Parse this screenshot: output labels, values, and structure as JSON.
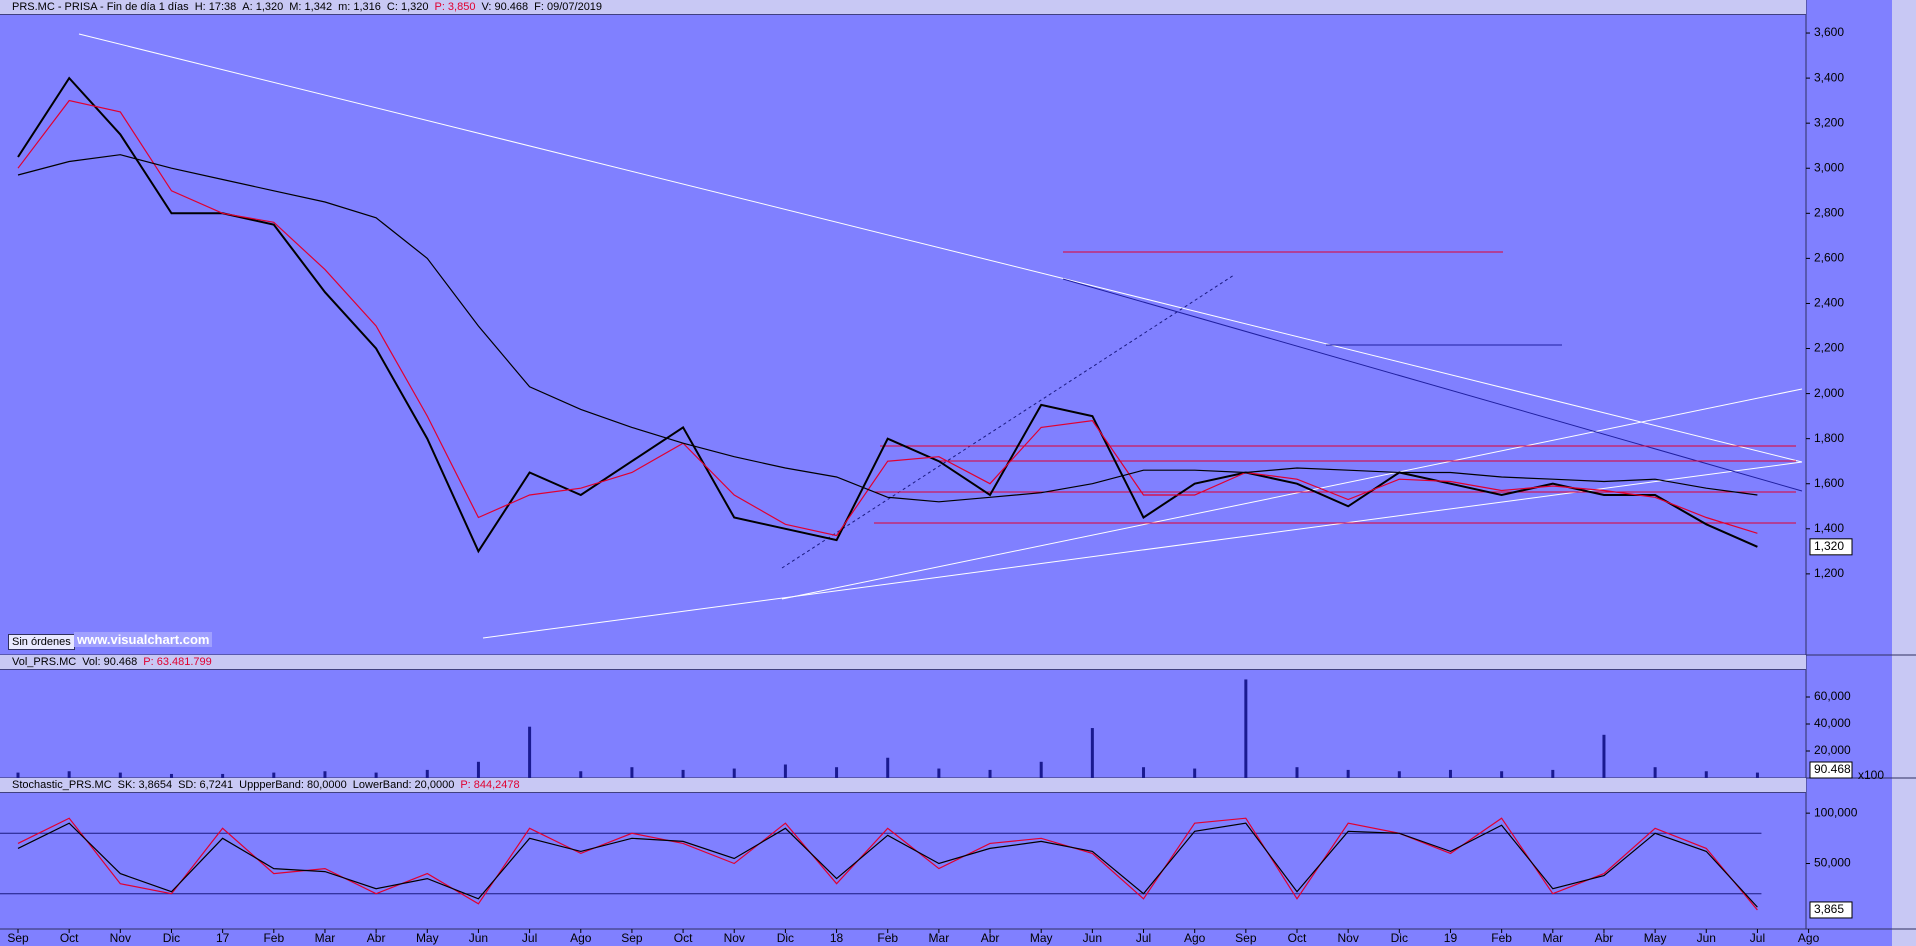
{
  "chart_data": [
    {
      "type": "line",
      "header": [
        {
          "text": "PRS.MC - PRISA - Fin de día 1 días",
          "color": "#000000"
        },
        {
          "text": "H: 17:38",
          "color": "#000000"
        },
        {
          "text": "A: 1,320",
          "color": "#000000"
        },
        {
          "text": "M: 1,342",
          "color": "#000000"
        },
        {
          "text": "m: 1,316",
          "color": "#000000"
        },
        {
          "text": "C: 1,320",
          "color": "#000000"
        },
        {
          "text": "P: 3,850",
          "color": "#e00030"
        },
        {
          "text": "V: 90.468",
          "color": "#000000"
        },
        {
          "text": "F: 09/07/2019",
          "color": "#000000"
        }
      ],
      "button": "Sin órdenes",
      "watermark": "www.visualchart.com",
      "last_label": "1,320",
      "ylim": [
        840,
        3680
      ],
      "yticks": [
        {
          "value": 1200,
          "label": "1,200"
        },
        {
          "value": 1400,
          "label": "1,400"
        },
        {
          "value": 1600,
          "label": "1,600"
        },
        {
          "value": 1800,
          "label": "1,800"
        },
        {
          "value": 2000,
          "label": "2,000"
        },
        {
          "value": 2200,
          "label": "2,200"
        },
        {
          "value": 2400,
          "label": "2,400"
        },
        {
          "value": 2600,
          "label": "2,600"
        },
        {
          "value": 2800,
          "label": "2,800"
        },
        {
          "value": 3000,
          "label": "3,000"
        },
        {
          "value": 3200,
          "label": "3,200"
        },
        {
          "value": 3400,
          "label": "3,400"
        },
        {
          "value": 3600,
          "label": "3,600"
        }
      ],
      "series": [
        {
          "color": "#000000",
          "values": [
            3050,
            3400,
            3150,
            2800,
            2800,
            2750,
            2450,
            2200,
            1800,
            1300,
            1650,
            1550,
            1700,
            1850,
            1450,
            1400,
            1350,
            1800,
            1700,
            1550,
            1950,
            1900,
            1450,
            1600,
            1650,
            1600,
            1500,
            1650,
            1600,
            1550,
            1600,
            1550,
            1550,
            1420,
            1320,
            null
          ]
        },
        {
          "color": "#e00030",
          "values": [
            3000,
            3300,
            3250,
            2900,
            2800,
            2760,
            2550,
            2300,
            1900,
            1450,
            1550,
            1580,
            1650,
            1780,
            1550,
            1420,
            1370,
            1700,
            1720,
            1600,
            1850,
            1880,
            1550,
            1550,
            1650,
            1620,
            1530,
            1620,
            1610,
            1570,
            1590,
            1570,
            1540,
            1450,
            1380,
            null
          ]
        },
        {
          "color": "#000000",
          "values": [
            2970,
            3030,
            3060,
            3000,
            2950,
            2900,
            2850,
            2780,
            2600,
            2300,
            2030,
            1930,
            1850,
            1780,
            1720,
            1670,
            1630,
            1540,
            1520,
            1540,
            1560,
            1600,
            1660,
            1660,
            1650,
            1670,
            1660,
            1650,
            1650,
            1630,
            1620,
            1610,
            1620,
            1580,
            1550,
            null
          ]
        }
      ]
    },
    {
      "type": "bar",
      "header": [
        {
          "text": "Vol_PRS.MC",
          "color": "#000000"
        },
        {
          "text": "Vol: 90.468",
          "color": "#000000"
        },
        {
          "text": "P: 63.481.799",
          "color": "#e00030"
        }
      ],
      "last_label": "90.468",
      "axis_note": "x100",
      "color": "#1a1a90",
      "ylim": [
        0,
        80000
      ],
      "yticks": [
        {
          "value": 20000,
          "label": "20,000"
        },
        {
          "value": 40000,
          "label": "40,000"
        },
        {
          "value": 60000,
          "label": "60,000"
        }
      ],
      "values": [
        4000,
        5000,
        4000,
        3000,
        3000,
        4000,
        5000,
        4000,
        6000,
        12000,
        38000,
        5000,
        8000,
        6000,
        7000,
        10000,
        8000,
        15000,
        7000,
        6000,
        12000,
        37000,
        8000,
        7000,
        73000,
        8000,
        6000,
        5000,
        6000,
        5000,
        6000,
        32000,
        8000,
        5000,
        4000,
        null
      ]
    },
    {
      "type": "line",
      "header": [
        {
          "text": "Stochastic_PRS.MC",
          "color": "#000000"
        },
        {
          "text": "SK: 3,8654",
          "color": "#000000"
        },
        {
          "text": "SD: 6,7241",
          "color": "#000000"
        },
        {
          "text": "UppperBand: 80,0000",
          "color": "#000000"
        },
        {
          "text": "LowerBand: 20,0000",
          "color": "#000000"
        },
        {
          "text": "P: 844,2478",
          "color": "#e00030"
        }
      ],
      "last_label": "3,865",
      "ylim": [
        -15,
        120
      ],
      "yticks": [
        {
          "value": 50,
          "label": "50,000"
        },
        {
          "value": 100,
          "label": "100,000"
        }
      ],
      "bands": [
        80,
        20
      ],
      "categories": [
        "Sep",
        "Oct",
        "Nov",
        "Dic",
        "17",
        "Feb",
        "Mar",
        "Abr",
        "May",
        "Jun",
        "Jul",
        "Ago",
        "Sep",
        "Oct",
        "Nov",
        "Dic",
        "18",
        "Feb",
        "Mar",
        "Abr",
        "May",
        "Jun",
        "Jul",
        "Ago",
        "Sep",
        "Oct",
        "Nov",
        "Dic",
        "19",
        "Feb",
        "Mar",
        "Abr",
        "May",
        "Jun",
        "Jul",
        "Ago"
      ],
      "series": [
        {
          "color": "#e00030",
          "values": [
            70,
            95,
            30,
            20,
            85,
            40,
            45,
            20,
            40,
            10,
            85,
            60,
            80,
            70,
            50,
            90,
            30,
            85,
            45,
            70,
            75,
            60,
            15,
            90,
            95,
            15,
            90,
            80,
            60,
            95,
            20,
            40,
            85,
            65,
            3.9,
            null
          ]
        },
        {
          "color": "#000000",
          "values": [
            65,
            90,
            40,
            22,
            75,
            45,
            42,
            25,
            35,
            15,
            75,
            62,
            75,
            72,
            55,
            85,
            35,
            78,
            50,
            65,
            72,
            62,
            20,
            82,
            90,
            22,
            82,
            80,
            62,
            88,
            25,
            38,
            80,
            62,
            6.7,
            null
          ]
        }
      ]
    }
  ]
}
